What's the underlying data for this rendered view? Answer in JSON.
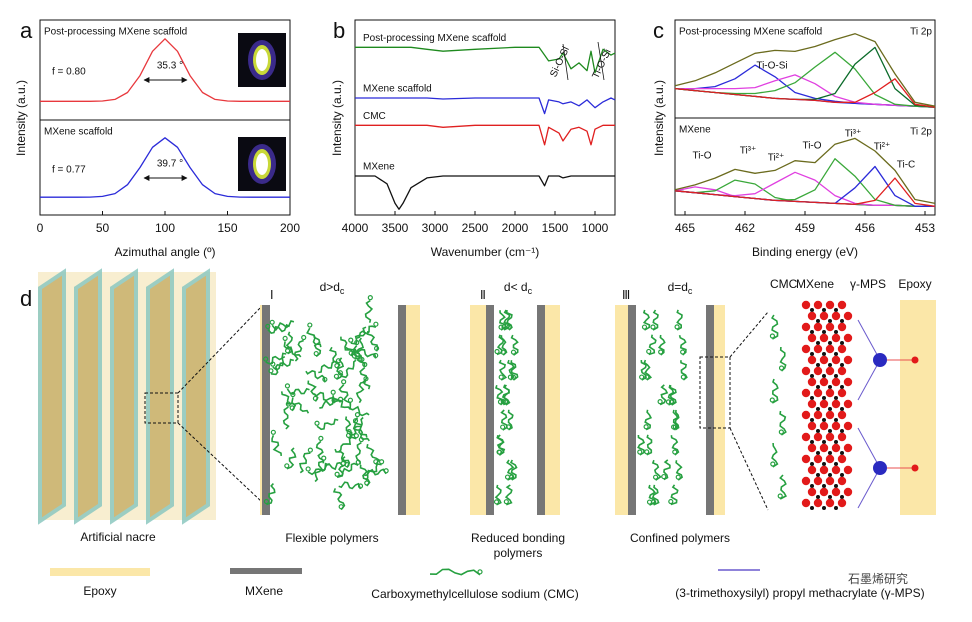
{
  "chart_data": [
    {
      "type": "line",
      "panel": "a",
      "title": "Post-processing MXene scaffold",
      "ylabel": "Intensity (a.u.)",
      "annotations": [
        "f = 0.80",
        "35.3 °"
      ],
      "x": [
        0,
        10,
        20,
        30,
        40,
        50,
        60,
        70,
        80,
        90,
        100,
        110,
        120,
        130,
        140,
        150,
        160,
        170,
        180,
        190,
        200
      ],
      "series": [
        {
          "color": "#e8383d",
          "values": [
            0,
            0,
            0,
            0,
            0,
            0.004,
            0.03,
            0.14,
            0.41,
            0.8,
            1,
            0.8,
            0.41,
            0.14,
            0.03,
            0.004,
            0,
            0,
            0,
            0,
            0
          ]
        }
      ],
      "xlim": [
        0,
        200
      ],
      "ylim": [
        -0.3,
        1.3
      ]
    },
    {
      "type": "line",
      "title": "MXene scaffold",
      "xlabel": "Azimuthal angle (º)",
      "annotations": [
        "f = 0.77",
        "39.7 °"
      ],
      "x": [
        0,
        10,
        20,
        30,
        40,
        50,
        60,
        70,
        80,
        90,
        100,
        110,
        120,
        130,
        140,
        150,
        160,
        170,
        180,
        190,
        200
      ],
      "series": [
        {
          "color": "#2b2bd9",
          "values": [
            0,
            0,
            0,
            0,
            0.002,
            0.013,
            0.06,
            0.21,
            0.5,
            0.84,
            1,
            0.84,
            0.5,
            0.21,
            0.06,
            0.013,
            0.002,
            0,
            0,
            0,
            0
          ]
        }
      ],
      "xlim": [
        0,
        200
      ],
      "ylim": [
        -0.3,
        1.3
      ],
      "xticks": [
        0,
        50,
        100,
        150,
        200
      ]
    },
    {
      "type": "line",
      "panel": "b",
      "ylabel": "Intensity (a.u.)",
      "xlabel": "Wavenumber (cm⁻¹)",
      "annotations": [
        "Si-O-Si",
        "Ti-O-Si"
      ],
      "x": [
        4000,
        3750,
        3600,
        3500,
        3450,
        3400,
        3300,
        3100,
        2900,
        2500,
        2000,
        1700,
        1630,
        1580,
        1450,
        1400,
        1300,
        1200,
        1100,
        1050,
        1000,
        900,
        800,
        750
      ],
      "series": [
        {
          "name": "Post-processing MXene scaffold",
          "color": "#1e8a1e",
          "values": [
            8.6,
            8.6,
            8.6,
            8.6,
            8.6,
            8.6,
            8.6,
            8.5,
            8.4,
            8.5,
            8.6,
            8.6,
            8.2,
            7.9,
            8.0,
            8.3,
            7.5,
            7.8,
            7.4,
            8.4,
            7.3,
            8.5,
            8.2,
            8.3
          ]
        },
        {
          "name": "MXene scaffold",
          "color": "#2b2bd9",
          "values": [
            6.0,
            6.0,
            6.0,
            6.0,
            6.0,
            6.0,
            6.0,
            6.0,
            5.95,
            6.0,
            6.0,
            6.0,
            5.2,
            5.9,
            5.8,
            5.7,
            5.8,
            5.6,
            5.9,
            5.7,
            5.5,
            5.8,
            6.0,
            5.9
          ]
        },
        {
          "name": "CMC",
          "color": "#e02020",
          "values": [
            4.6,
            4.6,
            4.6,
            4.6,
            4.6,
            4.6,
            4.6,
            4.6,
            4.5,
            4.6,
            4.6,
            4.6,
            3.6,
            4.5,
            4.2,
            3.8,
            4.4,
            4.5,
            4.3,
            3.6,
            4.4,
            4.6,
            4.6,
            4.6
          ]
        },
        {
          "name": "MXene",
          "color": "#111111",
          "values": [
            2.0,
            2.0,
            1.6,
            0.6,
            0.3,
            0.6,
            1.4,
            1.9,
            2.0,
            2.0,
            2.0,
            2.0,
            1.5,
            2.0,
            2.0,
            1.9,
            2.0,
            2.0,
            2.0,
            2.0,
            2.0,
            2.0,
            2.0,
            2.0
          ]
        }
      ],
      "xlim": [
        4000,
        750
      ],
      "ylim": [
        0,
        10
      ],
      "xticks": [
        4000,
        3500,
        3000,
        2500,
        2000,
        1500,
        1000
      ]
    },
    {
      "type": "line",
      "panel": "c",
      "title": "Post-processing MXene scaffold",
      "ylabel": "Intensity (a.u.)",
      "annotations": [
        "Ti 2p",
        "Ti-O-Si"
      ],
      "x": [
        465.5,
        464.5,
        463.5,
        462.5,
        461.5,
        460.5,
        459.5,
        458.5,
        457.5,
        456.5,
        455.5,
        454.5,
        453.5,
        452.5
      ],
      "series": [
        {
          "color": "#2b2bd9",
          "values": [
            3.0,
            2.8,
            2.6,
            2.4,
            2.2,
            2.0,
            1.9,
            1.8,
            1.6,
            1.5,
            1.4,
            1.3,
            1.2,
            1.1
          ]
        },
        {
          "color": "#2b2bd9",
          "values": [
            3.0,
            3.0,
            3.2,
            4.0,
            5.4,
            4.2,
            2.6,
            2.0,
            1.7,
            1.5,
            1.4,
            1.3,
            1.2,
            1.1
          ]
        },
        {
          "color": "#e040e0",
          "values": [
            3.0,
            3.0,
            3.0,
            3.0,
            3.1,
            3.8,
            4.4,
            3.5,
            2.2,
            1.6,
            1.4,
            1.3,
            1.2,
            1.1
          ]
        },
        {
          "color": "#3aa83a",
          "values": [
            3.0,
            2.8,
            2.6,
            2.5,
            2.5,
            2.8,
            3.6,
            5.2,
            6.7,
            5.0,
            2.4,
            1.4,
            1.2,
            1.1
          ]
        },
        {
          "color": "#0b6b2a",
          "values": [
            3.0,
            2.8,
            2.6,
            2.4,
            2.2,
            2.0,
            1.9,
            1.9,
            2.5,
            5.5,
            7.2,
            3.0,
            1.3,
            1.1
          ]
        },
        {
          "color": "#e02020",
          "values": [
            3.0,
            2.8,
            2.6,
            2.4,
            2.2,
            2.0,
            1.9,
            1.8,
            1.6,
            1.6,
            2.6,
            4.0,
            1.4,
            1.1
          ]
        },
        {
          "color": "#6b6b1e",
          "values": [
            3.3,
            3.8,
            4.6,
            5.6,
            6.6,
            6.9,
            6.8,
            7.3,
            8.0,
            8.6,
            7.8,
            4.5,
            1.6,
            1.2
          ]
        }
      ],
      "xlim": [
        465.5,
        452.5
      ],
      "ylim": [
        0,
        10
      ]
    },
    {
      "type": "line",
      "title": "MXene",
      "xlabel": "Binding energy (eV)",
      "annotations": [
        "Ti 2p",
        "Ti-O",
        "Ti³⁺",
        "Ti²⁺",
        "Ti-O",
        "Ti³⁺",
        "Ti²⁺",
        "Ti-C"
      ],
      "x": [
        465.5,
        464.5,
        463.5,
        462.5,
        461.5,
        460.5,
        459.5,
        458.5,
        457.5,
        456.5,
        455.5,
        454.5,
        453.5,
        452.5
      ],
      "series": [
        {
          "color": "#2b2bd9",
          "values": [
            2.5,
            2.3,
            2.1,
            1.9,
            1.7,
            1.5,
            1.4,
            1.3,
            1.2,
            1.1,
            1.0,
            1.0,
            0.9,
            0.9
          ]
        },
        {
          "color": "#e040e0",
          "values": [
            2.5,
            2.9,
            2.6,
            1.9,
            1.7,
            1.5,
            1.4,
            1.3,
            1.2,
            1.1,
            1.0,
            1.0,
            0.9,
            0.9
          ]
        },
        {
          "color": "#3aa83a",
          "values": [
            2.5,
            2.3,
            2.5,
            3.6,
            3.2,
            1.8,
            1.4,
            1.3,
            1.2,
            1.1,
            1.0,
            1.0,
            0.9,
            0.9
          ]
        },
        {
          "color": "#e040e0",
          "values": [
            2.5,
            2.3,
            2.1,
            2.0,
            2.2,
            3.3,
            4.4,
            3.6,
            2.0,
            1.2,
            1.0,
            1.0,
            0.9,
            0.9
          ]
        },
        {
          "color": "#3aa83a",
          "values": [
            2.5,
            2.3,
            2.1,
            1.9,
            1.7,
            1.5,
            1.6,
            2.6,
            5.8,
            4.0,
            1.6,
            1.0,
            0.9,
            0.9
          ]
        },
        {
          "color": "#2b2bd9",
          "values": [
            2.5,
            2.3,
            2.1,
            1.9,
            1.7,
            1.5,
            1.4,
            1.3,
            1.2,
            2.8,
            5.0,
            2.0,
            0.9,
            0.9
          ]
        },
        {
          "color": "#e02020",
          "values": [
            2.5,
            2.3,
            2.1,
            1.9,
            1.7,
            1.5,
            1.4,
            1.3,
            1.2,
            1.1,
            1.5,
            3.8,
            1.2,
            0.9
          ]
        },
        {
          "color": "#6b6b1e",
          "values": [
            2.6,
            3.1,
            3.8,
            4.7,
            4.3,
            4.6,
            5.6,
            5.4,
            7.3,
            7.9,
            6.6,
            4.6,
            1.6,
            1.2
          ]
        }
      ],
      "xlim": [
        465.5,
        452.5
      ],
      "ylim": [
        0,
        10
      ],
      "xticks": [
        465,
        462,
        459,
        456,
        453
      ]
    }
  ],
  "diagram": {
    "panel": "d",
    "nacre_label": "Artificial nacre",
    "stages": [
      {
        "numeral": "Ⅰ",
        "d": "d>d",
        "sub": "c",
        "label": [
          "Flexible polymers"
        ]
      },
      {
        "numeral": "Ⅱ",
        "d": "d< d",
        "sub": "c",
        "label": [
          "Reduced bonding",
          "polymers"
        ]
      },
      {
        "numeral": "Ⅲ",
        "d": "d=d",
        "sub": "c",
        "label": [
          "Confined polymers"
        ]
      }
    ],
    "schematic_labels": [
      "CMC",
      "MXene",
      "γ-MPS",
      "Epoxy"
    ],
    "legend": [
      "Epoxy",
      "MXene",
      "Carboxymethylcellulose sodium (CMC)",
      "(3-trimethoxysilyl) propyl methacrylate (γ-MPS)"
    ],
    "watermark": "石墨烯研究"
  }
}
